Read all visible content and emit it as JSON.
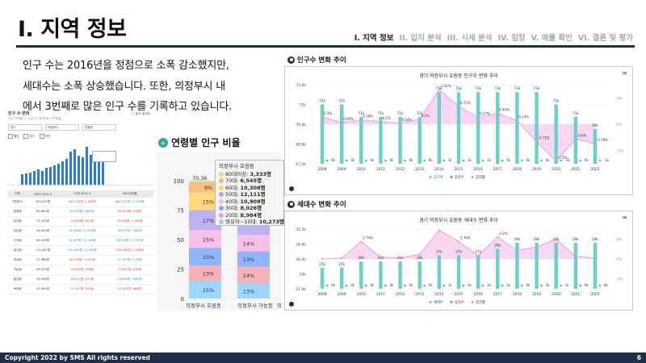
{
  "header": {
    "title": "I. 지역 정보",
    "nav": [
      "I. 지역 정보",
      "II. 입지 분석",
      "III. 시세 분석",
      "IV. 임장",
      "V. 매물 확인",
      "VI. 결론 및 평가"
    ]
  },
  "intro": {
    "lines": [
      "인구 수는 2016년을 정점으로 소폭 감소했지만,",
      "세대수는 소폭 상승했습니다.  또한, 의정부시 내",
      "에서 3번째로 많은 인구 수를 기록하고 있습니다."
    ]
  },
  "mini_dashboard": {
    "title": "인구 수 변화",
    "subtitle": "전국 지역별(시, 시/군/구, 읍/면/동) 인구현황",
    "link": "+ 출처: 통계청",
    "selects": [
      "경기",
      "의정부시",
      "호원동"
    ],
    "legend": [
      "월간",
      "분기",
      "연간"
    ],
    "bar_levels": [
      0.28,
      0.3,
      0.32,
      0.36,
      0.4,
      0.35,
      0.43,
      0.45,
      0.5,
      0.55,
      0.6,
      0.66,
      0.86,
      0.92,
      0.74,
      0.7,
      0.97,
      0.78,
      0.88,
      0.84,
      0.8
    ],
    "table": {
      "headers": [
        "지역",
        "2005\n2021.3",
        "11년\n2021.3",
        "2021년3월"
      ],
      "rows": [
        {
          "name": "의정부시",
          "a": "453,079명",
          "b": "461,143명",
          "b2": "-7,464명",
          "c": "464,102명",
          "c2": "+1,519명"
        },
        {
          "name": "호원동",
          "a": "62,800명",
          "b": "63,525명",
          "b2": "+835명",
          "c": "63,009명",
          "c2": "-516명"
        },
        {
          "name": "송산동",
          "a": "72,100명",
          "b": "71,409명",
          "b2": "-691명",
          "c": "70,300명",
          "c2": "-1,009명"
        },
        {
          "name": "장암동",
          "a": "26,400명",
          "b": "28,345명",
          "b2": "+1,945명",
          "c": "28,929명",
          "c2": "+584명"
        },
        {
          "name": "신곡동",
          "a": "80,378명",
          "b": "91,007명",
          "b2": "+2,209명",
          "c": "93,158명",
          "c2": "+2,151명"
        },
        {
          "name": "송산동",
          "a": "112,457명",
          "b": "120,000명",
          "b2": "+1,204명",
          "c": "120,000명",
          "c2": "-2,056명"
        },
        {
          "name": "자금동",
          "a": "27,980명",
          "b": "26,979명",
          "b2": "-1,001명",
          "c": "27,157명",
          "c2": "+178명"
        },
        {
          "name": "가능동",
          "a": "26,470명",
          "b": "25,962명",
          "b2": "-508명",
          "c": "25,817명",
          "c2": "-145명"
        },
        {
          "name": "흥선동",
          "a": "19,540명",
          "b": "18,071명",
          "b2": "-371명",
          "c": "19,560명",
          "c2": "+887명"
        },
        {
          "name": "녹양동",
          "a": "22,500명",
          "b": "21,957명",
          "b2": "-543명",
          "c": "21,491명",
          "c2": "-466명"
        }
      ]
    }
  },
  "age_chart": {
    "section_title": "연령별 인구 비율",
    "x_labels": [
      "의정부시 호원동",
      "의정부시 가능동",
      "의"
    ],
    "y_ticks": [
      "100",
      "75",
      "50",
      "25",
      "0"
    ],
    "colors": [
      "#8fd0ff",
      "#f4a6ae",
      "#7fa8ff",
      "#f8b5e5",
      "#b3a4f0",
      "#ffd36a",
      "#f9b56e",
      "#c9e88a"
    ],
    "segments_pct": {
      "호원동": {
        "values": [
          15,
          13,
          15,
          15,
          17,
          15,
          9,
          1
        ],
        "labels": [
          "15%",
          "13%",
          "15%",
          "15%",
          "17%",
          "15%",
          "9%",
          ""
        ]
      },
      "가능동": {
        "values": [
          13,
          14,
          13,
          14,
          15,
          15,
          10,
          6
        ],
        "labels": [
          "13%",
          "14%",
          "13%",
          "14%",
          "",
          "",
          "",
          ""
        ]
      }
    },
    "tooltip": {
      "title": "의정부시 호원동",
      "rows": [
        {
          "label": "80대이상",
          "value": "3,333명",
          "color": "#c9e88a"
        },
        {
          "label": "70대",
          "value": "6,545명",
          "color": "#f9b56e"
        },
        {
          "label": "60대",
          "value": "10,308명",
          "color": "#ffd36a"
        },
        {
          "label": "50대",
          "value": "12,111명",
          "color": "#b3a4f0"
        },
        {
          "label": "40대",
          "value": "10,908명",
          "color": "#f8b5e5"
        },
        {
          "label": "30대",
          "value": "8,026명",
          "color": "#7fa8ff"
        },
        {
          "label": "20대",
          "value": "8,984명",
          "color": "#f4a6ae"
        },
        {
          "label": "영유아~10대",
          "value": "10,273명",
          "color": "#8fd0ff"
        }
      ],
      "partial_total": "70,36"
    }
  },
  "population_chart": {
    "section_title": "인구수 변화 추이",
    "title": "경기 의정부시 호원동 인구수 변화 추이",
    "years": [
      "2008",
      "2009",
      "2010",
      "2011",
      "2012",
      "2013",
      "2014",
      "2015",
      "2016",
      "2017",
      "2018",
      "2019",
      "2020",
      "2021",
      "2022"
    ],
    "y_ticks": [
      "73.6k",
      "72k",
      "70.4k",
      "68.8k",
      "67.2k"
    ],
    "y_range": [
      67.2,
      73.6
    ],
    "y2_ticks": [
      "1%",
      "0%",
      "-1%"
    ],
    "y2_range": [
      -1.6,
      1.6
    ],
    "population_k": [
      72,
      72,
      71,
      71,
      71,
      71,
      73,
      73,
      73,
      73,
      73,
      73,
      72,
      71,
      70
    ],
    "bar_labels": [
      "72k",
      "72k",
      "71k",
      "71k",
      "71k",
      "71k",
      "73k",
      "73k",
      "73k",
      "73k",
      "73k",
      "73k",
      "72k",
      "71k",
      "70k"
    ],
    "change_count_labels": [
      "0k",
      "0k",
      "0k",
      "0k",
      "0k",
      "0k",
      "1k",
      "1k",
      "1k",
      "0k",
      "0k",
      "0k",
      "-1k",
      "0k",
      "-1k"
    ],
    "change_rate": [
      0.3,
      0.06,
      0.18,
      0.1,
      0.04,
      0.2,
      1.41,
      0.72,
      0.27,
      0.44,
      0.14,
      -0.71,
      -1.5,
      -0.6,
      -0.79
    ],
    "rate_labels": [
      "0.3%",
      "0.06%",
      "0.18%",
      "0.1%",
      "0.04%",
      "0.2%",
      "1.41%",
      "0.72%",
      "0.27%",
      "0.44%",
      "0.14%",
      "-0.71%",
      "-1.5%",
      "-0.6%",
      "-0.79%"
    ],
    "legend": [
      "인구수",
      "증감수",
      "증감률"
    ],
    "colors": {
      "bar": "#6cd0c8",
      "line": "#f2b6e8",
      "dot": "#38b6d6"
    }
  },
  "household_chart": {
    "section_title": "세대수 변화 추이",
    "title": "경기 의정부시 호원동 세대수 변화 추이",
    "years": [
      "2008",
      "2009",
      "2010",
      "2011",
      "2012",
      "2013",
      "2014",
      "2015",
      "2016",
      "2017",
      "2018",
      "2019",
      "2020",
      "2021",
      "2022"
    ],
    "y_ticks": [
      "31.2k",
      "28.8k",
      "26.4k",
      "24k",
      "21.6k"
    ],
    "y_range": [
      21.6,
      31.2
    ],
    "y2_ticks": [
      "2%",
      "0%",
      "-2%"
    ],
    "y2_range": [
      -3,
      3
    ],
    "households_k": [
      25,
      25,
      26,
      26,
      26,
      26,
      27,
      27,
      27,
      28,
      29,
      29,
      29,
      29,
      29
    ],
    "bar_labels": [
      "25k",
      "25k",
      "26k",
      "26k",
      "26k",
      "26k",
      "27k",
      "27k",
      "27k",
      "28k",
      "29k",
      "29k",
      "29k",
      "29k",
      "29k"
    ],
    "change_count_labels": [
      "0k",
      "0k",
      "0k",
      "0k",
      "0k",
      "0k",
      "1k",
      "0k",
      "1k",
      "1k",
      "0k",
      "1k",
      "1k",
      "0k",
      "0k"
    ],
    "change_rate": [
      0,
      0.1,
      1.74,
      0.2,
      0.1,
      0.47,
      2.9,
      1.74,
      0.33,
      2.2,
      0.88,
      1.2,
      2.0,
      0.27,
      0.1
    ],
    "rate_labels": [
      "",
      "",
      "1.74%",
      "",
      "",
      "",
      "",
      "1.74%",
      "",
      "2.2%",
      "",
      "",
      "",
      "",
      ""
    ],
    "legend": [
      "세대수",
      "증감수",
      "증감률"
    ],
    "colors": {
      "bar": "#6cd0c8",
      "line": "#f2b6e8",
      "dot": "#38b6d6"
    }
  },
  "footer": {
    "copyright": "Copyright 2022 by SMS  All rights reserved",
    "page": "6"
  }
}
